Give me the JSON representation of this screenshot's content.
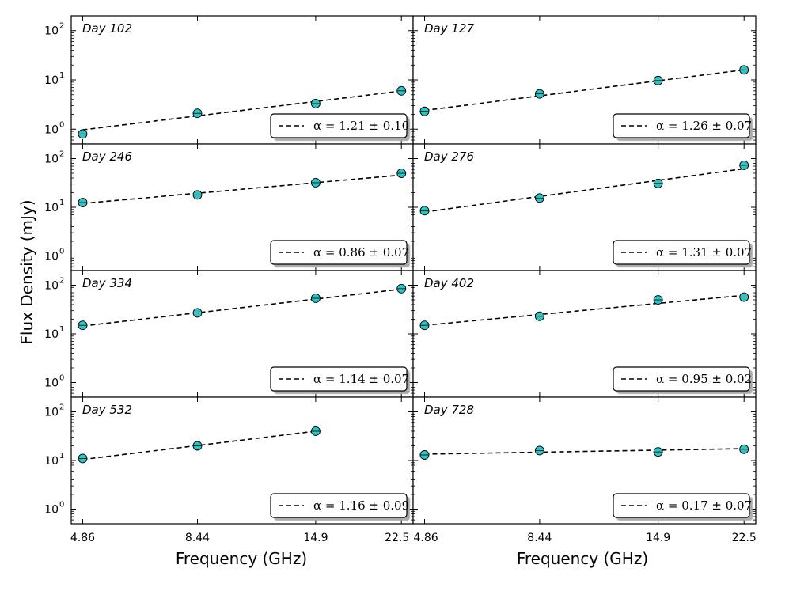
{
  "x_axis": {
    "label": "Frequency (GHz)",
    "ticks": [
      4.86,
      8.44,
      14.9,
      22.5
    ],
    "tick_labels": [
      "4.86",
      "8.44",
      "14.9",
      "22.5"
    ],
    "scale": "log",
    "xlim": [
      4.6,
      23.8
    ]
  },
  "y_axis": {
    "label": "Flux Density (mJy)",
    "scale": "log",
    "ylim": [
      0.5,
      200
    ],
    "tick_base": "10",
    "tick_exponents": [
      "0",
      "1",
      "2"
    ]
  },
  "legend_prefix": "α = ",
  "colors": {
    "marker_fill": "#2ec4c4",
    "marker_edge": "#000000",
    "fit_line": "#000000"
  },
  "chart_data": [
    {
      "type": "scatter",
      "title": "Day 102",
      "x": [
        4.86,
        8.44,
        14.9,
        22.5
      ],
      "values": [
        0.8,
        2.1,
        3.3,
        6.0
      ],
      "alpha_label": "1.21 ± 0.10",
      "fit": [
        0.97,
        5.95
      ]
    },
    {
      "type": "scatter",
      "title": "Day 127",
      "x": [
        4.86,
        8.44,
        14.9,
        22.5
      ],
      "values": [
        2.3,
        5.2,
        9.7,
        16.0
      ],
      "alpha_label": "1.26 ± 0.07",
      "fit": [
        2.4,
        16.0
      ]
    },
    {
      "type": "scatter",
      "title": "Day 246",
      "x": [
        4.86,
        8.44,
        14.9,
        22.5
      ],
      "values": [
        12.5,
        18.0,
        32.0,
        50.0
      ],
      "alpha_label": "0.86 ± 0.07",
      "fit": [
        12.0,
        46.0
      ]
    },
    {
      "type": "scatter",
      "title": "Day 276",
      "x": [
        4.86,
        8.44,
        14.9,
        22.5
      ],
      "values": [
        8.5,
        15.5,
        31.0,
        73.0
      ],
      "alpha_label": "1.31 ± 0.07",
      "fit": [
        8.0,
        62.0
      ]
    },
    {
      "type": "scatter",
      "title": "Day 334",
      "x": [
        4.86,
        8.44,
        14.9,
        22.5
      ],
      "values": [
        15.0,
        27.0,
        54.0,
        85.0
      ],
      "alpha_label": "1.14 ± 0.07",
      "fit": [
        14.5,
        83.0
      ]
    },
    {
      "type": "scatter",
      "title": "Day 402",
      "x": [
        4.86,
        8.44,
        14.9,
        22.5
      ],
      "values": [
        15.0,
        23.0,
        50.0,
        57.0
      ],
      "alpha_label": "0.95 ± 0.02",
      "fit": [
        15.0,
        62.0
      ]
    },
    {
      "type": "scatter",
      "title": "Day 532",
      "x": [
        4.86,
        8.44,
        14.9
      ],
      "values": [
        11.0,
        20.0,
        40.0
      ],
      "alpha_label": "1.16 ± 0.09",
      "fit": [
        10.5,
        40.0
      ]
    },
    {
      "type": "scatter",
      "title": "Day 728",
      "x": [
        4.86,
        8.44,
        14.9,
        22.5
      ],
      "values": [
        13.0,
        16.0,
        15.0,
        17.0
      ],
      "alpha_label": "0.17 ± 0.07",
      "fit": [
        13.5,
        17.5
      ]
    }
  ]
}
